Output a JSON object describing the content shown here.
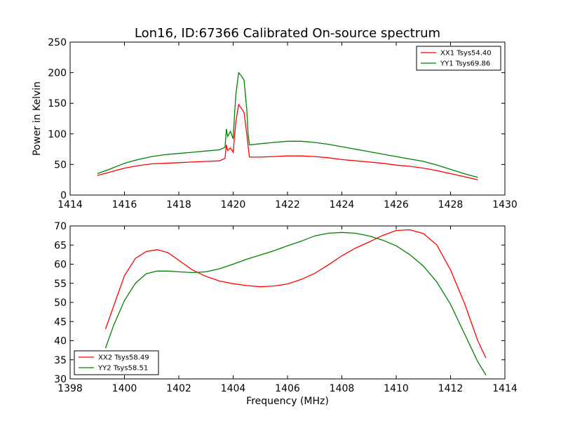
{
  "title": "Lon16, ID:67366 Calibrated On-source spectrum",
  "chart_data": [
    {
      "type": "line",
      "ylabel": "Power in Kelvin",
      "xlabel": "",
      "xlim": [
        1414,
        1430
      ],
      "ylim": [
        0,
        250
      ],
      "xticks": [
        "1414",
        "1416",
        "1418",
        "1420",
        "1422",
        "1424",
        "1426",
        "1428",
        "1430"
      ],
      "yticks": [
        "0",
        "50",
        "100",
        "150",
        "200",
        "250"
      ],
      "grid": false,
      "legend_position": "top-right",
      "series": [
        {
          "name": "XX1 Tsys54.40",
          "color": "#ff0000",
          "x": [
            1415.0,
            1415.5,
            1416.0,
            1416.5,
            1417.0,
            1417.5,
            1418.0,
            1418.5,
            1419.0,
            1419.5,
            1419.7,
            1419.75,
            1419.8,
            1419.9,
            1420.0,
            1420.05,
            1420.1,
            1420.2,
            1420.3,
            1420.4,
            1420.5,
            1420.55,
            1420.6,
            1421.0,
            1421.5,
            1422.0,
            1422.5,
            1423.0,
            1423.5,
            1424.0,
            1424.5,
            1425.0,
            1425.5,
            1426.0,
            1426.5,
            1427.0,
            1427.5,
            1428.0,
            1428.5,
            1429.0
          ],
          "values": [
            32,
            38,
            44,
            48,
            51,
            52,
            53,
            54,
            55,
            56,
            60,
            82,
            73,
            77,
            70,
            95,
            120,
            148,
            142,
            135,
            100,
            80,
            62,
            62,
            63,
            64,
            64,
            63,
            61,
            58,
            56,
            54,
            52,
            49,
            47,
            44,
            40,
            35,
            30,
            25
          ]
        },
        {
          "name": "YY1 Tsys69.86",
          "color": "#008000",
          "x": [
            1415.0,
            1415.5,
            1416.0,
            1416.5,
            1417.0,
            1417.5,
            1418.0,
            1418.5,
            1419.0,
            1419.5,
            1419.7,
            1419.75,
            1419.8,
            1419.9,
            1420.0,
            1420.05,
            1420.1,
            1420.2,
            1420.3,
            1420.4,
            1420.5,
            1420.55,
            1420.6,
            1421.0,
            1421.5,
            1422.0,
            1422.5,
            1423.0,
            1423.5,
            1424.0,
            1424.5,
            1425.0,
            1425.5,
            1426.0,
            1426.5,
            1427.0,
            1427.5,
            1428.0,
            1428.5,
            1429.0
          ],
          "values": [
            35,
            43,
            52,
            58,
            63,
            66,
            68,
            70,
            72,
            74,
            78,
            108,
            96,
            104,
            92,
            130,
            165,
            200,
            195,
            188,
            140,
            100,
            82,
            84,
            86,
            88,
            88,
            86,
            83,
            79,
            75,
            71,
            67,
            63,
            59,
            55,
            49,
            42,
            35,
            29
          ]
        }
      ]
    },
    {
      "type": "line",
      "ylabel": "",
      "xlabel": "Frequency (MHz)",
      "xlim": [
        1398,
        1414
      ],
      "ylim": [
        30,
        70
      ],
      "xticks": [
        "1398",
        "1400",
        "1402",
        "1404",
        "1406",
        "1408",
        "1410",
        "1412",
        "1414"
      ],
      "yticks": [
        "30",
        "35",
        "40",
        "45",
        "50",
        "55",
        "60",
        "65",
        "70"
      ],
      "grid": false,
      "legend_position": "bottom-left",
      "series": [
        {
          "name": "XX2 Tsys58.49",
          "color": "#ff0000",
          "x": [
            1399.3,
            1399.6,
            1400.0,
            1400.4,
            1400.8,
            1401.2,
            1401.6,
            1402.0,
            1402.5,
            1403.0,
            1403.5,
            1404.0,
            1404.5,
            1405.0,
            1405.5,
            1406.0,
            1406.5,
            1407.0,
            1407.5,
            1408.0,
            1408.5,
            1409.0,
            1409.5,
            1410.0,
            1410.5,
            1411.0,
            1411.5,
            1412.0,
            1412.5,
            1413.0,
            1413.3
          ],
          "values": [
            43,
            49,
            57,
            61.5,
            63.3,
            63.8,
            63,
            61,
            58.5,
            56.8,
            55.6,
            54.9,
            54.4,
            54.1,
            54.3,
            54.8,
            56,
            57.6,
            59.8,
            62.2,
            64.2,
            65.8,
            67.5,
            68.8,
            69,
            68,
            65,
            58.5,
            50,
            40,
            35.5
          ]
        },
        {
          "name": "YY2 Tsys58.51",
          "color": "#008000",
          "x": [
            1399.3,
            1399.6,
            1400.0,
            1400.4,
            1400.8,
            1401.2,
            1401.6,
            1402.0,
            1402.5,
            1403.0,
            1403.5,
            1404.0,
            1404.5,
            1405.0,
            1405.5,
            1406.0,
            1406.5,
            1407.0,
            1407.5,
            1408.0,
            1408.5,
            1409.0,
            1409.5,
            1410.0,
            1410.5,
            1411.0,
            1411.5,
            1412.0,
            1412.5,
            1413.0,
            1413.3
          ],
          "values": [
            38,
            44,
            50.5,
            55,
            57.5,
            58.2,
            58.2,
            58,
            57.8,
            58,
            58.8,
            60,
            61.3,
            62.4,
            63.5,
            64.8,
            66,
            67.4,
            68.1,
            68.3,
            68.1,
            67.4,
            66.3,
            64.8,
            62.5,
            59.5,
            55.3,
            49.5,
            42,
            34.5,
            31
          ]
        }
      ]
    }
  ]
}
